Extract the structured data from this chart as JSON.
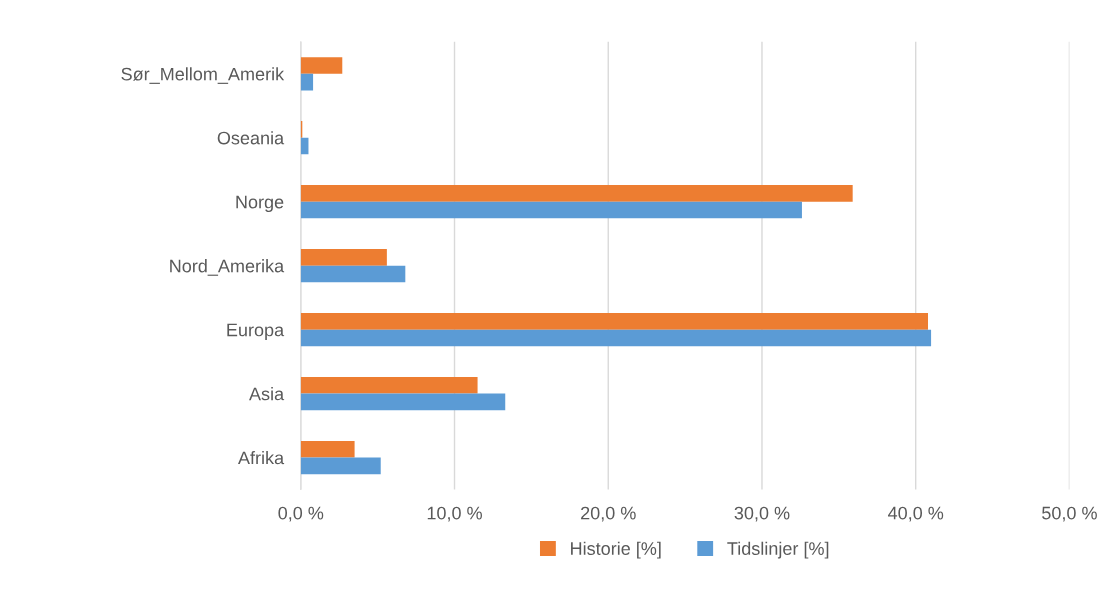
{
  "chart_data": {
    "type": "bar",
    "orientation": "horizontal",
    "categories": [
      "Sør_Mellom_Amerik",
      "Oseania",
      "Norge",
      "Nord_Amerika",
      "Europa",
      "Asia",
      "Afrika"
    ],
    "series": [
      {
        "name": "Historie [%]",
        "color": "#ed7d31",
        "values": [
          2.7,
          0.1,
          35.9,
          5.6,
          40.8,
          11.5,
          3.5
        ]
      },
      {
        "name": "Tidslinjer [%]",
        "color": "#5b9bd5",
        "values": [
          0.8,
          0.5,
          32.6,
          6.8,
          41.0,
          13.3,
          5.2
        ]
      }
    ],
    "xlim": [
      0,
      50
    ],
    "xticks": [
      {
        "value": 0,
        "label": "0,0 %"
      },
      {
        "value": 10,
        "label": "10,0 %"
      },
      {
        "value": 20,
        "label": "20,0 %"
      },
      {
        "value": 30,
        "label": "30,0 %"
      },
      {
        "value": 40,
        "label": "40,0 %"
      },
      {
        "value": 50,
        "label": "50,0 %"
      }
    ],
    "grid": "x",
    "legend": "bottom"
  }
}
